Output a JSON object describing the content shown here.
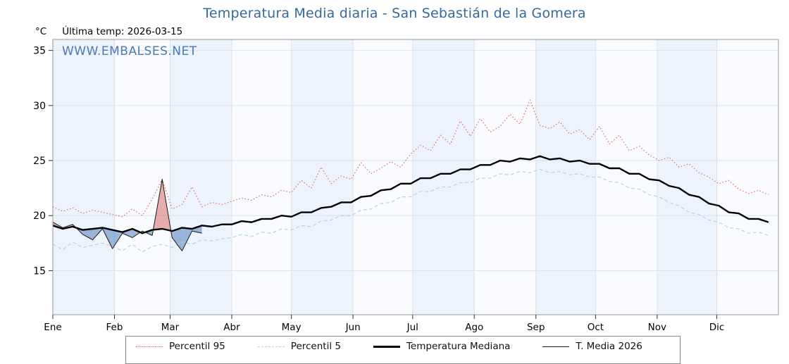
{
  "header": {
    "units": "°C",
    "last_temp": "Última temp: 2026-03-15",
    "watermark": "WWW.EMBALSES.NET"
  },
  "colors": {
    "title": "#35689e",
    "watermark": "#4a7ab5",
    "band_even": "#edf3fa",
    "band_odd": "#f9fbfe",
    "grid": "#d7e2ee",
    "plot_border": "#999999",
    "fill_above": "rgba(217,110,104,0.55)",
    "fill_below": "rgba(106,146,198,0.65)"
  },
  "chart_data": {
    "type": "line",
    "title": "Temperatura Media diaria - San Sebastián de la Gomera",
    "xlabel": "",
    "ylabel": "°C",
    "ylim": [
      11,
      36
    ],
    "yticks": [
      15,
      20,
      25,
      30,
      35
    ],
    "grid": true,
    "legend_position": "bottom",
    "months": [
      "Ene",
      "Feb",
      "Mar",
      "Abr",
      "May",
      "Jun",
      "Jul",
      "Ago",
      "Sep",
      "Oct",
      "Nov",
      "Dic"
    ],
    "month_start_days": [
      0,
      31,
      59,
      90,
      120,
      151,
      181,
      212,
      243,
      273,
      304,
      334
    ],
    "days_in_year": 365,
    "x_step_days": 5,
    "series": [
      {
        "name": "Percentil 95",
        "style": "dotted",
        "color": "#e05a52",
        "width": 1.1,
        "values": [
          20.8,
          20.4,
          20.7,
          20.2,
          20.5,
          20.3,
          20.1,
          19.9,
          20.6,
          20.0,
          21.5,
          23.3,
          20.6,
          21.0,
          22.6,
          20.8,
          21.2,
          21.0,
          21.3,
          21.6,
          21.4,
          21.9,
          21.7,
          22.3,
          22.1,
          23.2,
          22.5,
          24.4,
          22.9,
          23.6,
          23.3,
          24.8,
          23.8,
          24.3,
          24.9,
          24.4,
          25.6,
          26.4,
          25.9,
          27.3,
          26.5,
          28.6,
          27.2,
          28.8,
          27.6,
          28.1,
          29.2,
          28.3,
          30.5,
          28.2,
          27.9,
          28.5,
          27.4,
          27.8,
          26.9,
          28.1,
          26.5,
          27.3,
          25.9,
          26.3,
          25.5,
          25.0,
          25.3,
          24.4,
          24.7,
          23.9,
          23.5,
          22.9,
          23.2,
          22.4,
          22.0,
          22.3,
          21.9
        ]
      },
      {
        "name": "Percentil 5",
        "style": "dashed",
        "color": "#aed4e6",
        "width": 1.2,
        "values": [
          17.4,
          16.9,
          17.6,
          17.1,
          17.3,
          17.5,
          17.2,
          16.8,
          17.4,
          16.7,
          17.2,
          17.4,
          17.1,
          17.6,
          17.4,
          17.8,
          17.7,
          17.9,
          18.0,
          18.3,
          18.1,
          18.5,
          18.4,
          18.8,
          18.7,
          19.1,
          19.0,
          19.5,
          19.6,
          20.0,
          20.0,
          20.5,
          20.6,
          21.1,
          21.2,
          21.7,
          21.7,
          22.2,
          22.2,
          22.6,
          22.6,
          23.0,
          23.0,
          23.4,
          23.4,
          23.8,
          23.7,
          24.0,
          23.9,
          24.2,
          23.9,
          24.0,
          23.7,
          23.8,
          23.5,
          23.5,
          23.1,
          23.0,
          22.5,
          22.4,
          21.9,
          21.7,
          21.2,
          20.9,
          20.3,
          20.1,
          19.6,
          19.4,
          18.9,
          18.8,
          18.4,
          18.5,
          18.2
        ]
      },
      {
        "name": "Temperatura Mediana",
        "style": "solid",
        "color": "#000000",
        "width": 2.4,
        "values": [
          19.1,
          18.8,
          19.0,
          18.7,
          18.8,
          18.9,
          18.7,
          18.5,
          18.8,
          18.4,
          18.7,
          18.8,
          18.6,
          18.9,
          18.8,
          19.1,
          19.0,
          19.2,
          19.2,
          19.5,
          19.4,
          19.7,
          19.7,
          20.0,
          19.9,
          20.3,
          20.3,
          20.7,
          20.8,
          21.2,
          21.2,
          21.7,
          21.8,
          22.3,
          22.4,
          22.9,
          22.9,
          23.4,
          23.4,
          23.8,
          23.8,
          24.2,
          24.2,
          24.6,
          24.6,
          25.0,
          24.9,
          25.2,
          25.1,
          25.4,
          25.1,
          25.2,
          24.9,
          25.0,
          24.7,
          24.7,
          24.3,
          24.3,
          23.8,
          23.8,
          23.3,
          23.2,
          22.7,
          22.5,
          21.9,
          21.7,
          21.1,
          20.9,
          20.3,
          20.2,
          19.7,
          19.7,
          19.4
        ]
      },
      {
        "name": "T. Media 2026",
        "style": "solid",
        "color": "#1a1a1a",
        "width": 1.0,
        "fill_vs_series": 2,
        "values": [
          19.4,
          18.9,
          19.2,
          18.3,
          17.8,
          18.8,
          17.0,
          18.4,
          18.0,
          18.6,
          18.2,
          23.3,
          18.0,
          16.8,
          18.6,
          18.4
        ]
      }
    ],
    "legend_items": [
      {
        "label": "Percentil 95"
      },
      {
        "label": "Percentil 5"
      },
      {
        "label": "Temperatura Mediana"
      },
      {
        "label": "T. Media 2026"
      }
    ]
  }
}
